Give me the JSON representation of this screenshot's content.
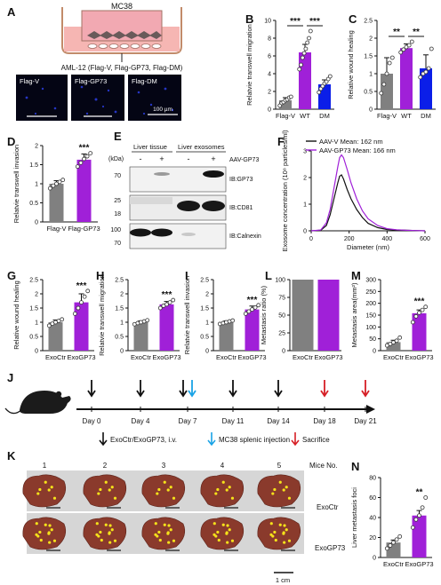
{
  "panels": {
    "A": {
      "letter": "A",
      "cell_label": "MC38",
      "caption": "AML-12 (Flag-V, Flag-GP73, Flag-DM)",
      "image_labels": [
        "Flag-V",
        "Flag-GP73",
        "Flag-DM"
      ],
      "scalebar_label": "100 µm"
    },
    "E": {
      "letter": "E",
      "group_labels": [
        "Liver tissue",
        "Liver exosomes"
      ],
      "unit_label": "(kDa)",
      "treatment_label": "AAV-GP73",
      "lane_signs": [
        "-",
        "+",
        "-",
        "+"
      ],
      "blots": [
        {
          "name": "IB:GP73",
          "markers": [
            "70"
          ]
        },
        {
          "name": "IB:CD81",
          "markers": [
            "25",
            "18"
          ]
        },
        {
          "name": "IB:Calnexin",
          "markers": [
            "100",
            "70"
          ]
        }
      ]
    },
    "J": {
      "letter": "J",
      "days": [
        "Day 0",
        "Day 4",
        "Day 7",
        "Day 11",
        "Day 14",
        "Day 18",
        "Day 21"
      ],
      "legend": [
        "ExoCtr/ExoGP73, i.v.",
        "MC38 splenic injection",
        "Sacrifice"
      ]
    },
    "K": {
      "letter": "K",
      "mice_numbers": [
        "1",
        "2",
        "3",
        "4",
        "5"
      ],
      "mice_label": "Mice No.",
      "row_labels": [
        "ExoCtr",
        "ExoGP73"
      ],
      "scalebar_label": "1 cm"
    }
  },
  "colors": {
    "gray": "#808080",
    "purple": "#a020d8",
    "blue": "#0b1ee8",
    "black_line": "#111111",
    "red_arrow": "#d61f26",
    "cyan_arrow": "#1aa3e6",
    "liver": "#8a3a2c"
  },
  "chart_data": [
    {
      "id": "B",
      "letter": "B",
      "type": "bar",
      "ylabel": "Relatvie transwell migration",
      "categories": [
        "Flag-V",
        "WT",
        "DM"
      ],
      "values": [
        1.0,
        6.4,
        2.8
      ],
      "errors": [
        0.3,
        0.9,
        0.5
      ],
      "ylim": [
        0,
        10
      ],
      "yticks": [
        0,
        2,
        4,
        6,
        8,
        10
      ],
      "points": [
        [
          0.4,
          0.7,
          0.8,
          1.0,
          1.1,
          1.3,
          1.4
        ],
        [
          4.5,
          5.0,
          5.8,
          6.3,
          6.8,
          7.5,
          8.0,
          8.8
        ],
        [
          1.9,
          2.3,
          2.6,
          2.9,
          3.1,
          3.4,
          3.7
        ]
      ],
      "significance": [
        {
          "from": 0,
          "to": 1,
          "label": "***"
        },
        {
          "from": 1,
          "to": 2,
          "label": "***"
        }
      ]
    },
    {
      "id": "C",
      "letter": "C",
      "type": "bar",
      "ylabel": "Relative wound healing",
      "categories": [
        "Flag-V",
        "WT",
        "DM"
      ],
      "values": [
        1.0,
        1.72,
        1.15
      ],
      "errors": [
        0.45,
        0.12,
        0.38
      ],
      "ylim": [
        0,
        2.5
      ],
      "yticks": [
        0,
        0.5,
        1.0,
        1.5,
        2.0,
        2.5
      ],
      "points": [
        [
          0.45,
          0.7,
          1.0,
          1.3,
          1.45
        ],
        [
          1.6,
          1.68,
          1.75,
          1.8,
          1.9
        ],
        [
          0.9,
          1.0,
          1.05,
          1.15,
          1.7
        ]
      ],
      "significance": [
        {
          "from": 0,
          "to": 1,
          "label": "**"
        },
        {
          "from": 1,
          "to": 2,
          "label": "**"
        }
      ]
    },
    {
      "id": "D",
      "letter": "D",
      "type": "bar",
      "ylabel": "Relatvie transwell invasion",
      "categories": [
        "Flag-V",
        "Flag-GP73"
      ],
      "values": [
        1.0,
        1.63
      ],
      "errors": [
        0.08,
        0.15
      ],
      "ylim": [
        0,
        2.0
      ],
      "yticks": [
        0,
        0.5,
        1.0,
        1.5,
        2.0
      ],
      "points": [
        [
          0.88,
          0.95,
          1.0,
          1.05,
          1.1
        ],
        [
          1.45,
          1.55,
          1.65,
          1.72,
          1.8
        ]
      ],
      "significance": [
        {
          "from": 1,
          "to": 1,
          "label": "***"
        }
      ]
    },
    {
      "id": "F",
      "letter": "F",
      "type": "line",
      "ylabel": "Exosome concentration (10⁸ particles/ml)",
      "xlabel": "Diameter (nm)",
      "xlim": [
        0,
        600
      ],
      "ylim": [
        0,
        3
      ],
      "xticks": [
        0,
        200,
        400,
        600
      ],
      "yticks": [
        0,
        1,
        2,
        3
      ],
      "legend": [
        "AAV-V Mean: 162 nm",
        "AAV-GP73 Mean: 166 nm"
      ],
      "series": [
        {
          "name": "AAV-V Mean: 162 nm",
          "x": [
            0,
            50,
            80,
            100,
            120,
            140,
            150,
            160,
            170,
            190,
            210,
            240,
            270,
            300,
            350,
            400,
            450,
            500,
            550,
            600
          ],
          "y": [
            0,
            0.02,
            0.2,
            0.6,
            1.2,
            1.8,
            2.05,
            2.1,
            1.95,
            1.55,
            1.2,
            0.8,
            0.5,
            0.28,
            0.12,
            0.05,
            0.03,
            0.02,
            0.01,
            0
          ]
        },
        {
          "name": "AAV-GP73 Mean: 166 nm",
          "x": [
            0,
            50,
            80,
            100,
            120,
            140,
            150,
            160,
            170,
            190,
            210,
            240,
            270,
            300,
            350,
            400,
            450,
            500,
            550,
            600
          ],
          "y": [
            0,
            0.03,
            0.3,
            0.8,
            1.6,
            2.4,
            2.75,
            2.85,
            2.75,
            2.3,
            1.8,
            1.2,
            0.75,
            0.45,
            0.2,
            0.08,
            0.04,
            0.02,
            0.01,
            0
          ]
        }
      ]
    },
    {
      "id": "G",
      "letter": "G",
      "type": "bar",
      "ylabel": "Relative wound healing",
      "categories": [
        "ExoCtr",
        "ExoGP73"
      ],
      "values": [
        1.0,
        1.7
      ],
      "errors": [
        0.08,
        0.3
      ],
      "ylim": [
        0,
        2.5
      ],
      "yticks": [
        0,
        0.5,
        1.0,
        1.5,
        2.0,
        2.5
      ],
      "points": [
        [
          0.88,
          0.95,
          1.0,
          1.05,
          1.1
        ],
        [
          1.3,
          1.5,
          1.7,
          1.9,
          2.1
        ]
      ],
      "significance": [
        {
          "from": 1,
          "to": 1,
          "label": "***"
        }
      ]
    },
    {
      "id": "H",
      "letter": "H",
      "type": "bar",
      "ylabel": "Relatvie transwell migration",
      "categories": [
        "ExoCtr",
        "ExoGP73"
      ],
      "values": [
        1.0,
        1.63
      ],
      "errors": [
        0.05,
        0.1
      ],
      "ylim": [
        0,
        2.5
      ],
      "yticks": [
        0,
        0.5,
        1.0,
        1.5,
        2.0,
        2.5
      ],
      "points": [
        [
          0.93,
          0.97,
          1.0,
          1.03,
          1.07
        ],
        [
          1.5,
          1.58,
          1.63,
          1.7,
          1.78
        ]
      ],
      "significance": [
        {
          "from": 1,
          "to": 1,
          "label": "***"
        }
      ]
    },
    {
      "id": "I",
      "letter": "I",
      "type": "bar",
      "ylabel": "Relatvie transwell invasion",
      "categories": [
        "ExoCtr",
        "ExoGP73"
      ],
      "values": [
        1.0,
        1.45
      ],
      "errors": [
        0.05,
        0.12
      ],
      "ylim": [
        0,
        2.5
      ],
      "yticks": [
        0,
        0.5,
        1.0,
        1.5,
        2.0,
        2.5
      ],
      "points": [
        [
          0.94,
          0.97,
          1.0,
          1.03,
          1.06
        ],
        [
          1.3,
          1.38,
          1.45,
          1.52,
          1.6
        ]
      ],
      "significance": [
        {
          "from": 1,
          "to": 1,
          "label": "***"
        }
      ]
    },
    {
      "id": "L",
      "letter": "L",
      "type": "bar",
      "ylabel": "Metastasis ratio (%)",
      "categories": [
        "ExoCtr",
        "ExoGP73"
      ],
      "values": [
        100,
        100
      ],
      "errors": [
        0,
        0
      ],
      "ylim": [
        0,
        100
      ],
      "yticks": [
        0,
        25,
        50,
        75,
        100
      ],
      "points": [
        [],
        []
      ],
      "significance": []
    },
    {
      "id": "M",
      "letter": "M",
      "type": "bar",
      "ylabel": "Metastasis area(mm²)",
      "categories": [
        "ExoCtr",
        "ExoGP73"
      ],
      "values": [
        36,
        158
      ],
      "errors": [
        8,
        14
      ],
      "ylim": [
        0,
        300
      ],
      "yticks": [
        0,
        50,
        100,
        150,
        200,
        250,
        300
      ],
      "points": [
        [
          22,
          28,
          35,
          42,
          55
        ],
        [
          120,
          145,
          160,
          172,
          185
        ]
      ],
      "significance": [
        {
          "from": 1,
          "to": 1,
          "label": "***"
        }
      ]
    },
    {
      "id": "N",
      "letter": "N",
      "type": "bar",
      "ylabel": "Liver metastasis foci",
      "categories": [
        "ExoCtr",
        "ExoGP73"
      ],
      "values": [
        15,
        42
      ],
      "errors": [
        2.5,
        5
      ],
      "ylim": [
        0,
        80
      ],
      "yticks": [
        0,
        20,
        40,
        60,
        80
      ],
      "points": [
        [
          9,
          12,
          15,
          18,
          21
        ],
        [
          30,
          38,
          42,
          50,
          60
        ]
      ],
      "significance": [
        {
          "from": 1,
          "to": 1,
          "label": "**"
        }
      ]
    }
  ]
}
